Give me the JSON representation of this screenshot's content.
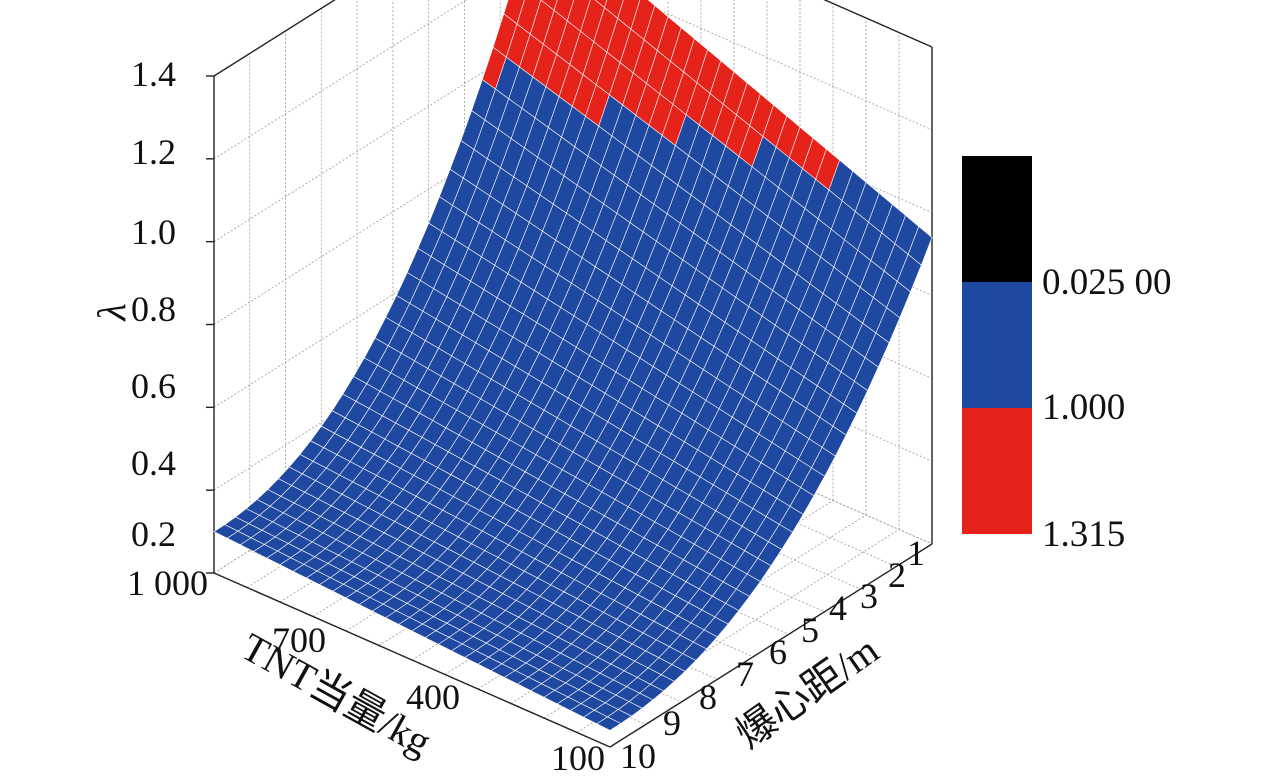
{
  "chart_data": {
    "type": "surface3d",
    "title": "",
    "axes": {
      "z": {
        "label": "λ",
        "range": [
          0.2,
          1.4
        ],
        "ticks": [
          "0.2",
          "0.4",
          "0.6",
          "0.8",
          "1.0",
          "1.2",
          "1.4"
        ]
      },
      "x": {
        "label": "TNT当量/kg",
        "range": [
          100,
          1000
        ],
        "ticks": [
          "1 000",
          "700",
          "400",
          "100"
        ]
      },
      "y": {
        "label": "爆心距/m",
        "range": [
          1,
          10
        ],
        "ticks": [
          "1",
          "2",
          "3",
          "4",
          "5",
          "6",
          "7",
          "8",
          "9",
          "10"
        ]
      }
    },
    "grid": true,
    "surface_samples": [
      {
        "tnt_kg": 1000,
        "distance_m": 10,
        "lambda": 0.27
      },
      {
        "tnt_kg": 100,
        "distance_m": 10,
        "lambda": 0.25
      },
      {
        "tnt_kg": 1000,
        "distance_m": 1,
        "lambda": 1.34
      },
      {
        "tnt_kg": 100,
        "distance_m": 1,
        "lambda": 0.98
      }
    ],
    "colorbar": {
      "segments": [
        {
          "color": "#000000"
        },
        {
          "color": "#1F48A0"
        },
        {
          "color": "#E5231B"
        }
      ],
      "labels": [
        "0.025 00",
        "1.000",
        "1.315"
      ]
    }
  }
}
